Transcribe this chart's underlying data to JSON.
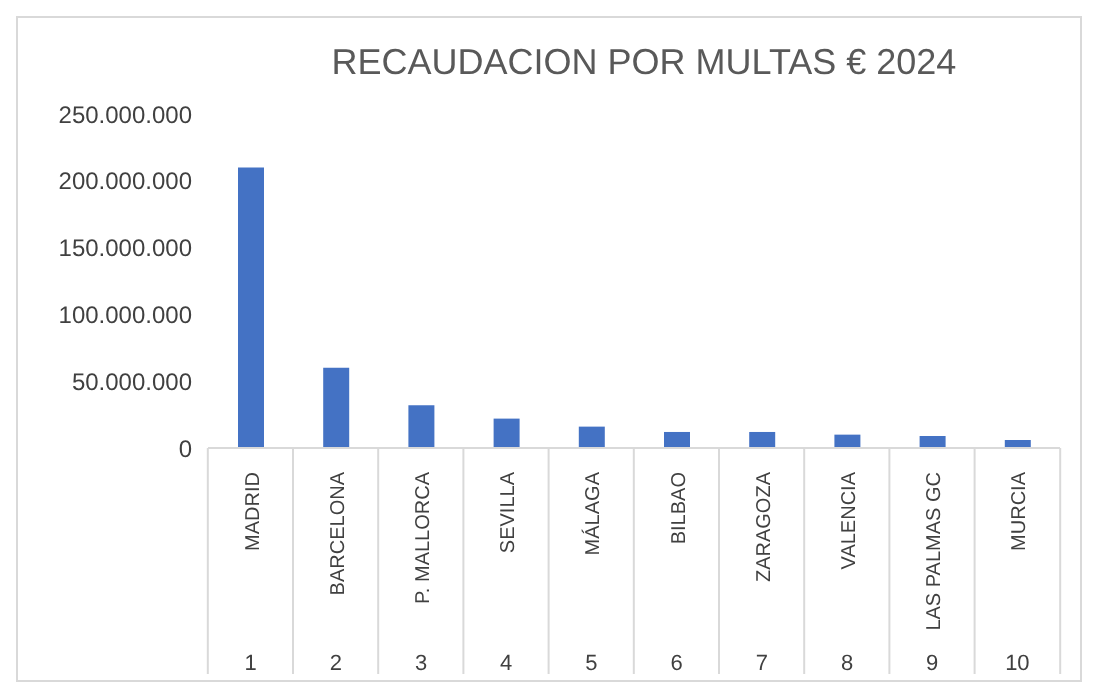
{
  "chart_data": {
    "type": "bar",
    "title": "RECAUDACION POR MULTAS € 2024",
    "categories": [
      "MADRID",
      "BARCELONA",
      "P. MALLORCA",
      "SEVILLA",
      "MÁLAGA",
      "BILBAO",
      "ZARAGOZA",
      "VALENCIA",
      "LAS PALMAS GC",
      "MURCIA"
    ],
    "values": [
      210000000,
      60000000,
      32000000,
      22000000,
      16000000,
      12000000,
      12000000,
      10000000,
      9000000,
      6000000
    ],
    "color": "#4472c4",
    "ylim": [
      0,
      250000000
    ],
    "yticks": [
      0,
      {
        "value": 50000000,
        "label": "50.000.000"
      },
      {
        "value": 100000000,
        "label": "100.000.000"
      },
      {
        "value": 150000000,
        "label": "150.000.000"
      },
      {
        "value": 200000000,
        "label": "200.000.000"
      },
      {
        "value": 250000000,
        "label": "250.000.000"
      }
    ],
    "annotations": [
      "1",
      "2",
      "3",
      "4",
      "5",
      "6",
      "7",
      "8",
      "9",
      "10"
    ]
  }
}
